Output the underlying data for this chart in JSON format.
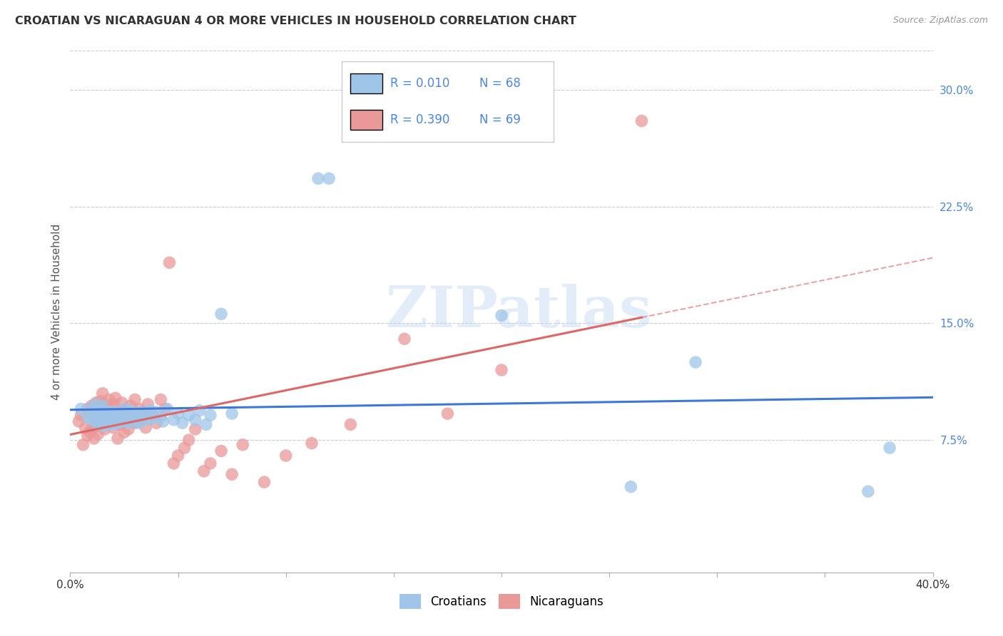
{
  "title": "CROATIAN VS NICARAGUAN 4 OR MORE VEHICLES IN HOUSEHOLD CORRELATION CHART",
  "source": "Source: ZipAtlas.com",
  "ylabel": "4 or more Vehicles in Household",
  "xlim": [
    0.0,
    0.4
  ],
  "ylim": [
    -0.01,
    0.325
  ],
  "x_ticks": [
    0.0,
    0.05,
    0.1,
    0.15,
    0.2,
    0.25,
    0.3,
    0.35,
    0.4
  ],
  "x_tick_labels": [
    "0.0%",
    "",
    "",
    "",
    "",
    "",
    "",
    "",
    "40.0%"
  ],
  "y_ticks_right": [
    0.075,
    0.15,
    0.225,
    0.3
  ],
  "y_tick_labels_right": [
    "7.5%",
    "15.0%",
    "22.5%",
    "30.0%"
  ],
  "croatian_color": "#9fc5e8",
  "nicaraguan_color": "#ea9999",
  "croatian_R": 0.01,
  "croatian_N": 68,
  "nicaraguan_R": 0.39,
  "nicaraguan_N": 69,
  "watermark": "ZIPatlas",
  "background_color": "#ffffff",
  "grid_color": "#cccccc",
  "croatian_line_color": "#3c78d8",
  "nicaraguan_line_color": "#e06666",
  "legend_text_color": "#4a86e8",
  "croatian_dots_x": [
    0.005,
    0.008,
    0.01,
    0.01,
    0.01,
    0.012,
    0.012,
    0.012,
    0.013,
    0.013,
    0.014,
    0.014,
    0.015,
    0.015,
    0.015,
    0.016,
    0.016,
    0.017,
    0.017,
    0.018,
    0.018,
    0.019,
    0.019,
    0.02,
    0.02,
    0.021,
    0.021,
    0.022,
    0.022,
    0.023,
    0.024,
    0.025,
    0.025,
    0.026,
    0.027,
    0.027,
    0.028,
    0.028,
    0.03,
    0.03,
    0.031,
    0.032,
    0.033,
    0.035,
    0.036,
    0.037,
    0.038,
    0.04,
    0.042,
    0.043,
    0.045,
    0.048,
    0.05,
    0.052,
    0.055,
    0.058,
    0.06,
    0.063,
    0.065,
    0.07,
    0.075,
    0.115,
    0.12,
    0.2,
    0.26,
    0.29,
    0.37,
    0.38
  ],
  "croatian_dots_y": [
    0.095,
    0.09,
    0.088,
    0.092,
    0.096,
    0.087,
    0.093,
    0.098,
    0.085,
    0.091,
    0.089,
    0.094,
    0.086,
    0.092,
    0.097,
    0.084,
    0.09,
    0.088,
    0.093,
    0.086,
    0.091,
    0.087,
    0.093,
    0.085,
    0.09,
    0.088,
    0.093,
    0.086,
    0.092,
    0.09,
    0.087,
    0.091,
    0.095,
    0.089,
    0.086,
    0.092,
    0.088,
    0.094,
    0.087,
    0.092,
    0.09,
    0.086,
    0.093,
    0.091,
    0.088,
    0.094,
    0.089,
    0.093,
    0.09,
    0.087,
    0.095,
    0.088,
    0.092,
    0.086,
    0.091,
    0.088,
    0.094,
    0.085,
    0.091,
    0.156,
    0.092,
    0.243,
    0.243,
    0.155,
    0.045,
    0.125,
    0.042,
    0.07
  ],
  "nicaraguan_dots_x": [
    0.004,
    0.005,
    0.006,
    0.007,
    0.008,
    0.008,
    0.009,
    0.009,
    0.01,
    0.01,
    0.011,
    0.011,
    0.012,
    0.012,
    0.013,
    0.013,
    0.014,
    0.014,
    0.015,
    0.015,
    0.016,
    0.016,
    0.017,
    0.018,
    0.018,
    0.019,
    0.02,
    0.02,
    0.021,
    0.021,
    0.022,
    0.022,
    0.023,
    0.024,
    0.025,
    0.025,
    0.026,
    0.027,
    0.028,
    0.028,
    0.03,
    0.03,
    0.032,
    0.033,
    0.035,
    0.036,
    0.038,
    0.04,
    0.042,
    0.044,
    0.046,
    0.048,
    0.05,
    0.053,
    0.055,
    0.058,
    0.062,
    0.065,
    0.07,
    0.075,
    0.08,
    0.09,
    0.1,
    0.112,
    0.13,
    0.155,
    0.175,
    0.2,
    0.265
  ],
  "nicaraguan_dots_y": [
    0.087,
    0.091,
    0.072,
    0.083,
    0.078,
    0.095,
    0.08,
    0.093,
    0.082,
    0.097,
    0.076,
    0.09,
    0.084,
    0.099,
    0.079,
    0.093,
    0.085,
    0.1,
    0.088,
    0.105,
    0.082,
    0.098,
    0.091,
    0.086,
    0.101,
    0.095,
    0.083,
    0.098,
    0.087,
    0.102,
    0.076,
    0.091,
    0.085,
    0.099,
    0.08,
    0.094,
    0.088,
    0.082,
    0.097,
    0.091,
    0.086,
    0.101,
    0.095,
    0.089,
    0.083,
    0.098,
    0.092,
    0.086,
    0.101,
    0.095,
    0.189,
    0.06,
    0.065,
    0.07,
    0.075,
    0.082,
    0.055,
    0.06,
    0.068,
    0.053,
    0.072,
    0.048,
    0.065,
    0.073,
    0.085,
    0.14,
    0.092,
    0.12,
    0.28
  ]
}
